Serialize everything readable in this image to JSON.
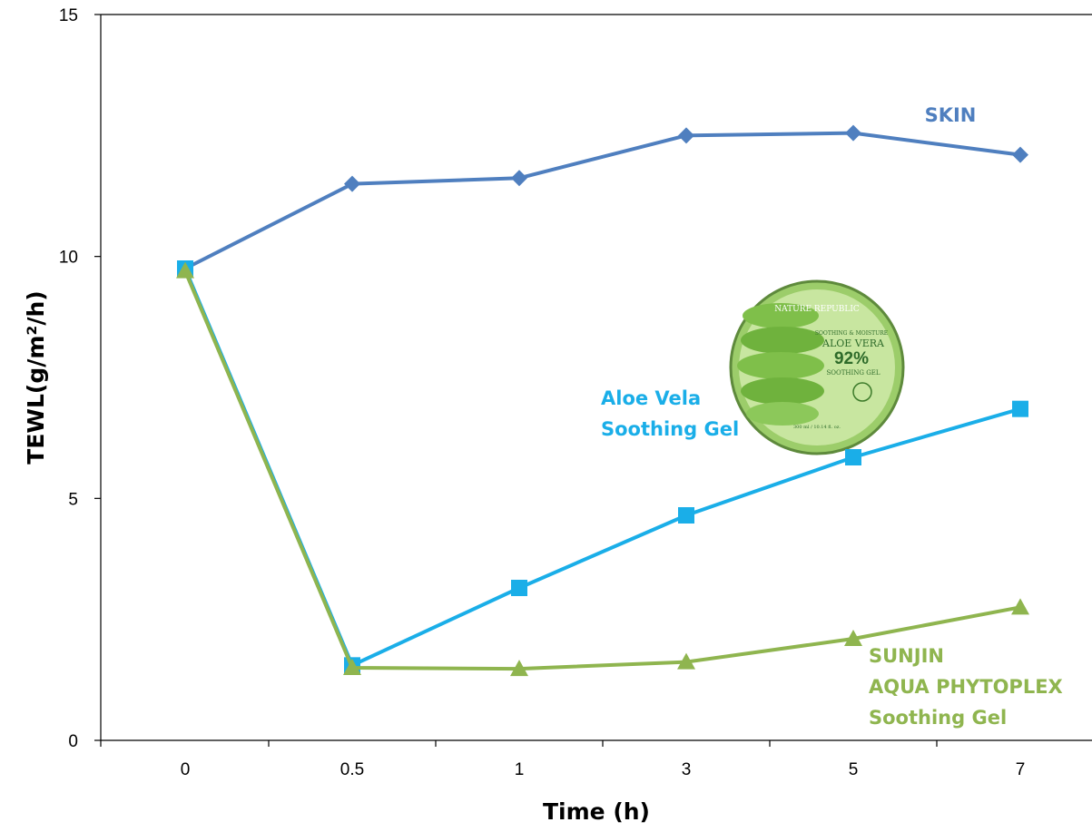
{
  "chart_data": {
    "type": "line",
    "categories": [
      "0",
      "0.5",
      "1",
      "3",
      "5",
      "7"
    ],
    "xlabel": "Time (h)",
    "ylabel": "TEWL(g/m²/h)",
    "ylim": [
      0,
      15
    ],
    "yticks": [
      0,
      5,
      10,
      15
    ],
    "grid": false,
    "series": [
      {
        "name": "SKIN",
        "label_lines": [
          "SKIN"
        ],
        "marker": "diamond",
        "color": "#4F7FBF",
        "values": [
          9.75,
          11.5,
          11.62,
          12.5,
          12.55,
          12.1
        ]
      },
      {
        "name": "Aloe Vela Soothing Gel",
        "label_lines": [
          "Aloe Vela",
          "Soothing Gel"
        ],
        "marker": "square",
        "color": "#1AAEE8",
        "values": [
          9.75,
          1.55,
          3.15,
          4.65,
          5.85,
          6.85
        ]
      },
      {
        "name": "SUNJIN AQUA PHYTOPLEX Soothing Gel",
        "label_lines": [
          "SUNJIN",
          "AQUA PHYTOPLEX",
          "Soothing Gel"
        ],
        "marker": "triangle",
        "color": "#8FB54F",
        "values": [
          9.7,
          1.5,
          1.48,
          1.62,
          2.1,
          2.75
        ]
      }
    ]
  },
  "product_image": {
    "brand": "NATURE REPUBLIC",
    "subline": "SOOTHING & MOISTURE",
    "name": "ALOE VERA",
    "percent": "92%",
    "product": "SOOTHING GEL",
    "volume": "300 ml / 10.14 fl. oz."
  }
}
